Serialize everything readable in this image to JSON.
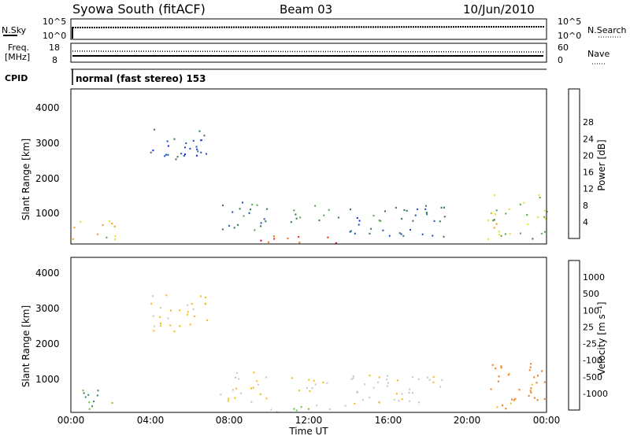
{
  "header": {
    "station": "Syowa South (fitACF)",
    "beam": "Beam 03",
    "date": "10/Jun/2010"
  },
  "top_panels": {
    "nsky_label": "N.Sky",
    "nsky_ticks": [
      "10^5",
      "10^0"
    ],
    "nsearch_label": "N.Search",
    "nsearch_ticks": [
      "10^5",
      "10^0"
    ],
    "freq_label": "Freq.",
    "freq_unit": "[MHz]",
    "freq_ticks": [
      "18",
      "8"
    ],
    "nave_label": "Nave",
    "nave_ticks": [
      "60",
      "0"
    ],
    "cpid_label": "CPID",
    "cpid_text": "normal (fast stereo) 153"
  },
  "axes": {
    "ylabel": "Slant Range [km]",
    "y_ticks": [
      "1000",
      "2000",
      "3000",
      "4000"
    ],
    "xlabel": "Time UT",
    "x_ticks": [
      "00:00",
      "04:00",
      "08:00",
      "12:00",
      "16:00",
      "20:00",
      "00:00"
    ]
  },
  "colorbars": {
    "power": {
      "label": "Power [dB]",
      "ticks": [
        "4",
        "8",
        "12",
        "16",
        "20",
        "24",
        "28"
      ],
      "colors": [
        "#1a2eff",
        "#2a55c8",
        "#3c7a5a",
        "#5fa855",
        "#e8e028",
        "#f0a028",
        "#f07020",
        "#e83018",
        "#e80018"
      ]
    },
    "velocity": {
      "label": "Velocity [m s⁻¹]",
      "ticks": [
        "1000",
        "500",
        "100",
        "25",
        "-25",
        "-100",
        "-500",
        "-1000"
      ],
      "colors": [
        "#1a2ab0",
        "#3060c0",
        "#3c8a6a",
        "#70c040",
        "#c8c8c8",
        "#f0c020",
        "#f08020",
        "#f05018",
        "#e81818"
      ]
    }
  },
  "chart_data": [
    {
      "type": "heatmap",
      "title": "Power",
      "x_range_hours": [
        0,
        24
      ],
      "y_range_km": [
        180,
        4600
      ],
      "value_unit": "dB",
      "value_range": [
        0,
        32
      ],
      "features": [
        {
          "t": [
            0,
            2.2
          ],
          "r": [
            300,
            900
          ],
          "value": 18
        },
        {
          "t": [
            4,
            7
          ],
          "r": [
            2500,
            3600
          ],
          "value": 6
        },
        {
          "t": [
            7.5,
            10
          ],
          "r": [
            500,
            1400
          ],
          "value": 8
        },
        {
          "t": [
            9.5,
            14
          ],
          "r": [
            200,
            450
          ],
          "value": 26
        },
        {
          "t": [
            11,
            13.5
          ],
          "r": [
            800,
            1300
          ],
          "value": 12
        },
        {
          "t": [
            14,
            19
          ],
          "r": [
            400,
            1300
          ],
          "value": 7
        },
        {
          "t": [
            21,
            24
          ],
          "r": [
            300,
            1600
          ],
          "value": 14
        }
      ]
    },
    {
      "type": "heatmap",
      "title": "Velocity",
      "x_range_hours": [
        0,
        24
      ],
      "y_range_km": [
        180,
        4600
      ],
      "value_unit": "m s-1",
      "value_range": [
        -1000,
        1000
      ],
      "features": [
        {
          "t": [
            0,
            2.2
          ],
          "r": [
            300,
            900
          ],
          "value": 300
        },
        {
          "t": [
            4,
            7
          ],
          "r": [
            2500,
            3600
          ],
          "value": -150
        },
        {
          "t": [
            7.5,
            10
          ],
          "r": [
            500,
            1400
          ],
          "value": -120
        },
        {
          "t": [
            9.5,
            14
          ],
          "r": [
            200,
            450
          ],
          "value": 60
        },
        {
          "t": [
            11,
            13.5
          ],
          "r": [
            800,
            1300
          ],
          "value": -80
        },
        {
          "t": [
            14,
            19
          ],
          "r": [
            400,
            1300
          ],
          "value": -60
        },
        {
          "t": [
            21,
            24
          ],
          "r": [
            300,
            1600
          ],
          "value": -400
        }
      ]
    }
  ]
}
